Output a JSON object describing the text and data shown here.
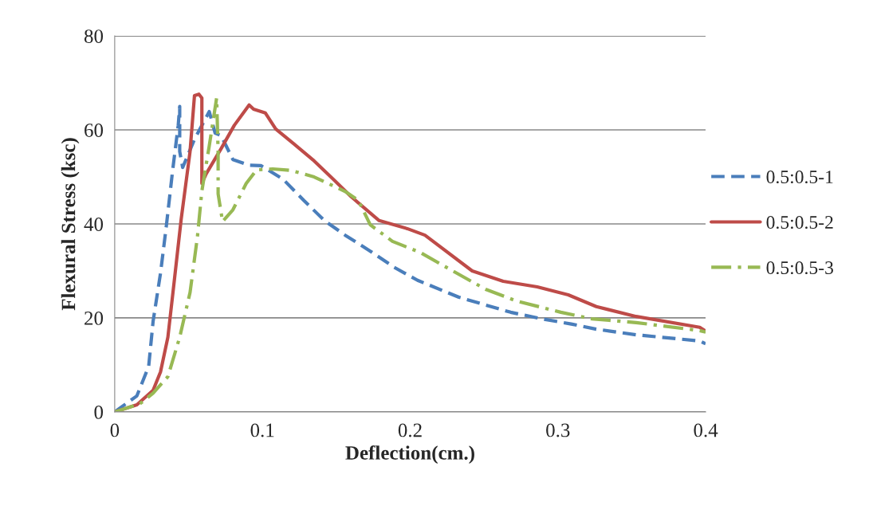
{
  "chart_data": {
    "type": "line",
    "xlabel": "Deflection(cm.)",
    "ylabel": "Flexural Stress (ksc)",
    "xlim": [
      0,
      0.4
    ],
    "xticks": [
      0,
      0.1,
      0.2,
      0.3,
      0.4
    ],
    "ylim": [
      0,
      80
    ],
    "yticks": [
      0,
      20,
      40,
      60,
      80
    ],
    "grid": "y",
    "legend": "right",
    "series": [
      {
        "name": "0.5:0.5-1",
        "color": "#4a7ebb",
        "line_style": "dashed",
        "x": [
          0,
          0.015,
          0.023,
          0.026,
          0.031,
          0.035,
          0.039,
          0.043,
          0.044,
          0.044,
          0.046,
          0.054,
          0.064,
          0.068,
          0.072,
          0.08,
          0.091,
          0.099,
          0.114,
          0.128,
          0.142,
          0.156,
          0.173,
          0.189,
          0.205,
          0.233,
          0.268,
          0.289,
          0.309,
          0.326,
          0.353,
          0.396,
          0.4
        ],
        "values": [
          0,
          3.4,
          9.7,
          19.3,
          29.5,
          39.7,
          50.8,
          61,
          65,
          55.4,
          52,
          58,
          63.9,
          59.3,
          58.8,
          53.7,
          52.5,
          52.4,
          49.5,
          45,
          40.7,
          37.6,
          34.2,
          30.8,
          28,
          24.4,
          21.2,
          19.8,
          18.7,
          17.6,
          16.4,
          15.1,
          14.5
        ]
      },
      {
        "name": "0.5:0.5-2",
        "color": "#be4b48",
        "line_style": "solid",
        "x": [
          0,
          0.015,
          0.026,
          0.031,
          0.036,
          0.04,
          0.045,
          0.051,
          0.054,
          0.057,
          0.059,
          0.059,
          0.062,
          0.072,
          0.081,
          0.091,
          0.094,
          0.102,
          0.109,
          0.121,
          0.135,
          0.147,
          0.16,
          0.179,
          0.198,
          0.21,
          0.242,
          0.263,
          0.286,
          0.307,
          0.326,
          0.353,
          0.396,
          0.4
        ],
        "values": [
          0,
          1.5,
          4.6,
          8.5,
          15.9,
          27,
          41,
          55.4,
          67.3,
          67.6,
          66.8,
          48.6,
          50.7,
          56,
          61,
          65.3,
          64.4,
          63.6,
          60.2,
          57.1,
          53.4,
          49.8,
          45.8,
          40.7,
          39,
          37.6,
          30,
          27.8,
          26.6,
          24.9,
          22.4,
          20.3,
          18,
          17.2
        ]
      },
      {
        "name": "0.5:0.5-3",
        "color": "#98b954",
        "line_style": "dashdot",
        "x": [
          0,
          0.017,
          0.026,
          0.036,
          0.044,
          0.051,
          0.056,
          0.059,
          0.064,
          0.069,
          0.07,
          0.07,
          0.073,
          0.08,
          0.089,
          0.096,
          0.107,
          0.119,
          0.135,
          0.156,
          0.165,
          0.173,
          0.188,
          0.207,
          0.226,
          0.251,
          0.272,
          0.302,
          0.323,
          0.353,
          0.396,
          0.4
        ],
        "values": [
          0,
          1.7,
          4,
          7.5,
          15.9,
          25.4,
          37.3,
          47,
          56.6,
          66.8,
          55.4,
          46.4,
          40.5,
          43,
          48.6,
          51.5,
          51.7,
          51.4,
          50,
          46.9,
          45,
          39.8,
          36.3,
          33.9,
          30.5,
          26.1,
          23.6,
          21.2,
          19.8,
          19,
          17.3,
          17
        ]
      }
    ]
  }
}
